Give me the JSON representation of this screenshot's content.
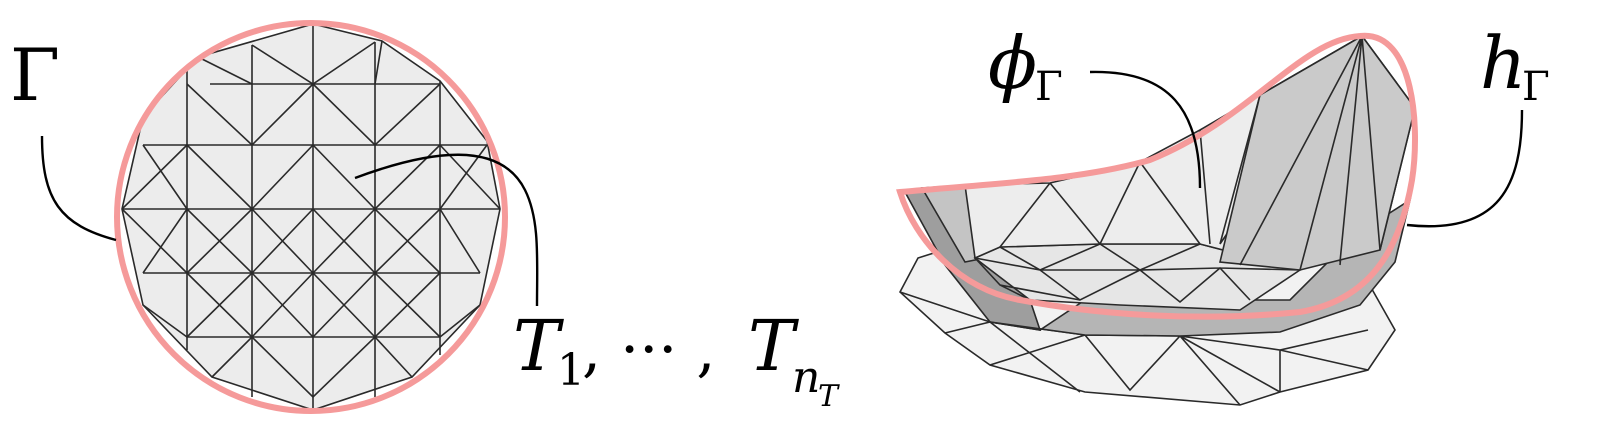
{
  "left_panel": {
    "boundary_label": "Γ",
    "mesh_label": {
      "T": "T",
      "first_sub": "1",
      "sep": ", ··· ,",
      "last_sub": "n",
      "last_subsub": "T"
    }
  },
  "right_panel": {
    "phi_label": {
      "base": "ϕ",
      "sub": "Γ"
    },
    "h_label": {
      "base": "h",
      "sub": "Γ"
    }
  },
  "colors": {
    "boundary": "#f59a9a",
    "mesh_fill_light": "#ececec",
    "mesh_fill_mid": "#c8c8c8",
    "mesh_fill_dark": "#9e9e9e",
    "edge": "#2a2a2a"
  }
}
